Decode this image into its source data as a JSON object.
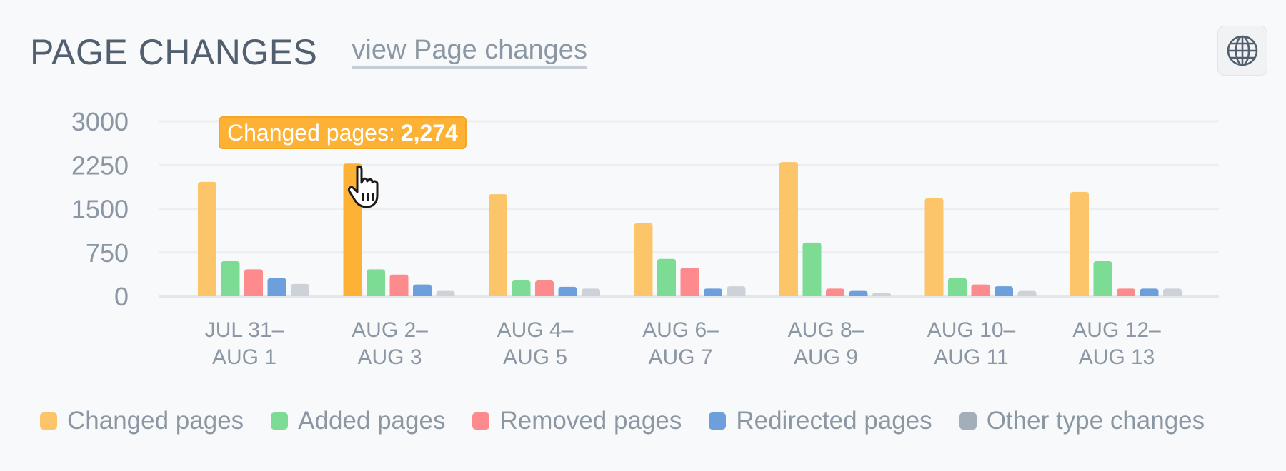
{
  "header": {
    "title": "PAGE CHANGES",
    "view_link": "view Page changes"
  },
  "icons": {
    "globe": "globe-icon",
    "cursor": "hand-pointer-icon"
  },
  "tooltip": {
    "label": "Changed pages:",
    "value": "2,274"
  },
  "colors": {
    "changed": "#fcc56a",
    "changed_highlight": "#fdb236",
    "added": "#7cdc93",
    "removed": "#fd8a8c",
    "redirected": "#6c9fdc",
    "other": "#cdd2d8",
    "other_legend": "#a3aeb8"
  },
  "chart_data": {
    "type": "bar",
    "title": "",
    "xlabel": "",
    "ylabel": "",
    "ylim": [
      0,
      3000
    ],
    "yticks": [
      0,
      750,
      1500,
      2250,
      3000
    ],
    "grid": true,
    "legend_position": "bottom",
    "categories": [
      [
        "JUL 31–",
        "AUG 1"
      ],
      [
        "AUG 2–",
        "AUG 3"
      ],
      [
        "AUG 4–",
        "AUG 5"
      ],
      [
        "AUG 6–",
        "AUG 7"
      ],
      [
        "AUG 8–",
        "AUG 9"
      ],
      [
        "AUG 10–",
        "AUG 11"
      ],
      [
        "AUG 12–",
        "AUG 13"
      ]
    ],
    "highlighted": {
      "series": 0,
      "category": 1
    },
    "series": [
      {
        "name": "Changed pages",
        "values": [
          1960,
          2274,
          1750,
          1250,
          2300,
          1680,
          1790
        ]
      },
      {
        "name": "Added pages",
        "values": [
          600,
          460,
          270,
          640,
          920,
          310,
          600
        ]
      },
      {
        "name": "Removed pages",
        "values": [
          460,
          370,
          270,
          490,
          130,
          200,
          130
        ]
      },
      {
        "name": "Redirected pages",
        "values": [
          310,
          200,
          160,
          130,
          90,
          170,
          130
        ]
      },
      {
        "name": "Other type changes",
        "values": [
          210,
          90,
          130,
          170,
          60,
          90,
          130
        ]
      }
    ]
  }
}
